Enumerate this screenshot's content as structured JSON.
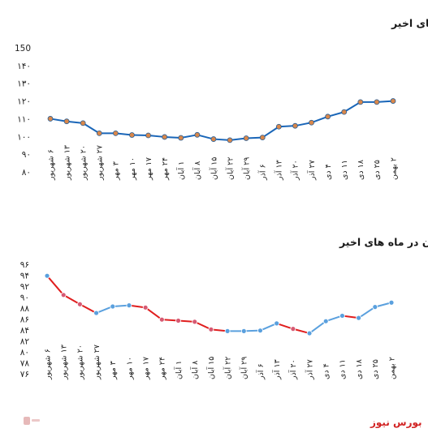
{
  "brand": {
    "name": "بورس نیوز"
  },
  "chart_data": [
    {
      "type": "line",
      "title": "روند نرخ پلی پروپیلن پتروشیمی مارون در ماه های اخیر",
      "yticks": [
        "150",
        "۱۴۰",
        "۱۳۰",
        "۱۲۰",
        "۱۱۰",
        "۱۰۰",
        "۹۰",
        "۸۰"
      ],
      "ylim": [
        80,
        150
      ],
      "grid": false,
      "categories": [
        "۶ شهریور",
        "۱۳ شهریور",
        "۲۰ شهریور",
        "۲۷ شهریور",
        "۳ مهر",
        "۱۰ مهر",
        "۱۷ مهر",
        "۲۴ مهر",
        "۱ آبان",
        "۸ آبان",
        "۱۵ آبان",
        "۲۲ آبان",
        "۲۹ آبان",
        "۶ آذر",
        "۱۳ آذر",
        "۲۰ آذر",
        "۲۷ آذر",
        "۴ دی",
        "۱۱ دی",
        "۱۸ دی",
        "۲۵ دی",
        "۲ بهمن"
      ],
      "values": [
        110,
        108.5,
        107.5,
        101.8,
        101.8,
        100.8,
        100.6,
        99.7,
        99.2,
        100.9,
        98.5,
        97.9,
        99,
        99.4,
        105.5,
        106,
        107.8,
        111.2,
        113.8,
        119.4,
        119.4,
        120
      ],
      "line_color": "#1a66b8",
      "marker_color": "#d9874a"
    },
    {
      "type": "line",
      "title": "روند نرخ پلی اتیلن سنگین پتروشیمی مارون در ماه های اخیر",
      "yticks": [
        "۹۶",
        "۹۴",
        "۹۲",
        "۹۰",
        "۸۸",
        "۸۶",
        "۸۴",
        "۸۲",
        "۸۰",
        "۷۸",
        "۷۶"
      ],
      "ylim": [
        76,
        96
      ],
      "grid": false,
      "categories": [
        "۶ شهریور",
        "۱۳ شهریور",
        "۲۰ شهریور",
        "۲۷ شهریور",
        "۳ مهر",
        "۱۰ مهر",
        "۱۷ مهر",
        "۲۴ مهر",
        "۱ آبان",
        "۸ آبان",
        "۱۵ آبان",
        "۲۲ آبان",
        "۲۹ آبان",
        "۶ آذر",
        "۱۳ آذر",
        "۲۰ آذر",
        "۲۷ آذر",
        "۴ دی",
        "۱۱ دی",
        "۱۸ دی",
        "۲۵ دی",
        "۲ بهمن"
      ],
      "values": [
        93.9,
        90.4,
        88.7,
        87.1,
        88.3,
        88.5,
        88.1,
        85.9,
        85.7,
        85.5,
        84.1,
        83.8,
        83.8,
        83.9,
        85.2,
        84.2,
        83.4,
        85.6,
        86.6,
        86.2,
        88.2,
        89
      ],
      "rising_color": "#5aa0de",
      "falling_color": "#e01e1e",
      "marker_color": "#5aa0de",
      "falling_marker_color": "#d65a73"
    }
  ]
}
